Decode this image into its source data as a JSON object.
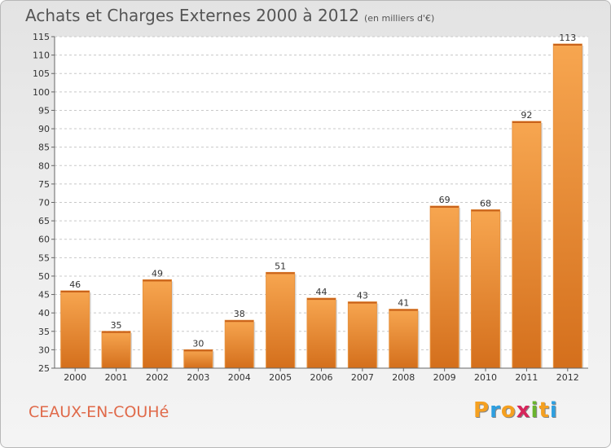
{
  "header": {
    "title": "Achats et Charges Externes 2000 à 2012",
    "subtitle": "(en milliers d'€)"
  },
  "footer": {
    "commune": "CEAUX-EN-COUHé",
    "logo_letters": [
      "P",
      "r",
      "o",
      "x",
      "i",
      "t",
      "i"
    ],
    "logo_colors": [
      "#f5a020",
      "#2e9fe0",
      "#f5a020",
      "#d7265c",
      "#6ab42d",
      "#f5a020",
      "#2e9fe0"
    ]
  },
  "colors": {
    "bar": "#f0852a",
    "bar_light": "#f7a957",
    "bar_dark": "#d86f1a",
    "grid": "#c8c8c8"
  },
  "chart_data": {
    "type": "bar",
    "title": "Achats et Charges Externes 2000 à 2012",
    "subtitle": "(en milliers d'€)",
    "categories": [
      "2000",
      "2001",
      "2002",
      "2003",
      "2004",
      "2005",
      "2006",
      "2007",
      "2008",
      "2009",
      "2010",
      "2011",
      "2012"
    ],
    "values": [
      46,
      35,
      49,
      30,
      38,
      51,
      44,
      43,
      41,
      69,
      68,
      92,
      113
    ],
    "ylim": [
      25,
      115
    ],
    "ytick_step": 5,
    "grid": true,
    "data_labels": true
  }
}
